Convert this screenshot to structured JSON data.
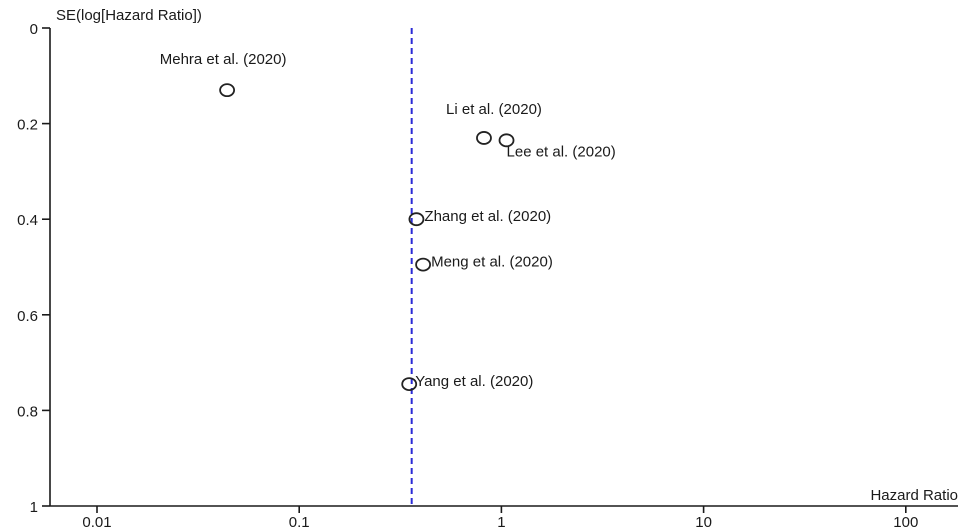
{
  "chart_data": {
    "type": "scatter",
    "chart_kind": "funnel plot",
    "ylabel": "SE(log[Hazard Ratio])",
    "xlabel": "Hazard Ratio",
    "x_scale": "log",
    "xlim": [
      0.005,
      200
    ],
    "ylim": [
      0,
      1
    ],
    "y_inverted": true,
    "xticks": [
      0.01,
      0.1,
      1,
      10,
      100
    ],
    "xtick_labels": [
      "0.01",
      "0.1",
      "1",
      "10",
      "100"
    ],
    "yticks": [
      0,
      0.2,
      0.4,
      0.6,
      0.8,
      1
    ],
    "ytick_labels": [
      "0",
      "0.2",
      "0.4",
      "0.6",
      "0.8",
      "1"
    ],
    "reference_line": {
      "x": 0.36,
      "style": "dashed",
      "color": "#2b2bd6"
    },
    "marker_color": "#222222",
    "points": [
      {
        "label": "Mehra et al. (2020)",
        "x": 0.044,
        "y": 0.13
      },
      {
        "label": "Li et al. (2020)",
        "x": 0.82,
        "y": 0.23
      },
      {
        "label": "Lee et al. (2020)",
        "x": 1.06,
        "y": 0.235
      },
      {
        "label": "Zhang et al. (2020)",
        "x": 0.38,
        "y": 0.4
      },
      {
        "label": "Meng et al. (2020)",
        "x": 0.41,
        "y": 0.495
      },
      {
        "label": "Yang et al. (2020)",
        "x": 0.35,
        "y": 0.745
      }
    ],
    "grid": false
  }
}
